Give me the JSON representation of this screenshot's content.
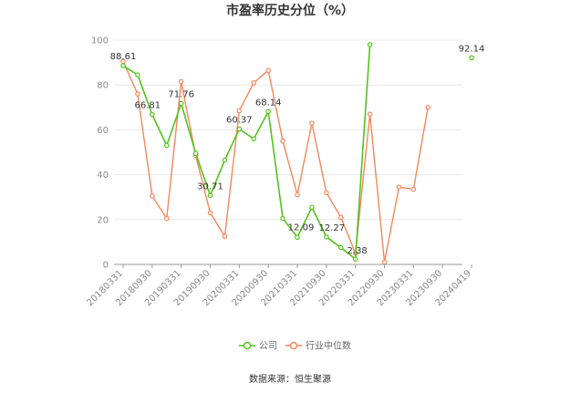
{
  "chart_data": {
    "type": "line",
    "title": "市盈率历史分位（%）",
    "xlabel": "",
    "ylabel": "",
    "ylim": [
      0,
      100
    ],
    "yticks": [
      0,
      20,
      40,
      60,
      80,
      100
    ],
    "x_tick_labels": [
      "20180331",
      "20180930",
      "20190331",
      "20190930",
      "20200331",
      "20200930",
      "20210331",
      "20210930",
      "20220331",
      "20220930",
      "20230331",
      "20230930",
      "20240419"
    ],
    "x_tick_positions": [
      0,
      2,
      4,
      6,
      8,
      10,
      12,
      14,
      16,
      18,
      20,
      22,
      24
    ],
    "grid": true,
    "legend_position": "bottom",
    "series": [
      {
        "name": "公司",
        "color": "#52c41a",
        "x": [
          0,
          1,
          2,
          3,
          4,
          5,
          6,
          7,
          8,
          9,
          10,
          11,
          12,
          13,
          14,
          15,
          16,
          17,
          24
        ],
        "values": [
          88.61,
          84.5,
          66.81,
          53.0,
          71.76,
          49.5,
          30.71,
          46.5,
          60.37,
          56.0,
          68.14,
          20.5,
          12.09,
          25.5,
          12.27,
          7.5,
          2.38,
          98.0,
          92.14
        ],
        "connected_until_index": 17
      },
      {
        "name": "行业中位数",
        "color": "#f4875a",
        "x": [
          0,
          1,
          2,
          3,
          4,
          5,
          6,
          7,
          8,
          9,
          10,
          11,
          12,
          13,
          14,
          15,
          16,
          17,
          18,
          19,
          20,
          21
        ],
        "values": [
          90.5,
          76.0,
          30.5,
          20.5,
          81.5,
          48.5,
          23.0,
          12.5,
          68.5,
          81.0,
          86.5,
          55.0,
          31.0,
          63.0,
          32.0,
          21.0,
          5.0,
          67.0,
          1.0,
          34.5,
          33.5,
          70.0
        ]
      }
    ],
    "data_labels": [
      {
        "series": 0,
        "index": 0,
        "text": "88.61"
      },
      {
        "series": 0,
        "index": 2,
        "text": "66.81"
      },
      {
        "series": 0,
        "index": 4,
        "text": "71.76"
      },
      {
        "series": 0,
        "index": 6,
        "text": "30.71"
      },
      {
        "series": 0,
        "index": 8,
        "text": "60.37"
      },
      {
        "series": 0,
        "index": 10,
        "text": "68.14"
      },
      {
        "series": 0,
        "index": 12,
        "text": "12.09"
      },
      {
        "series": 0,
        "index": 14,
        "text": "12.27"
      },
      {
        "series": 0,
        "index": 16,
        "text": "2.38"
      },
      {
        "series": 0,
        "index": 18,
        "text": "92.14"
      }
    ]
  },
  "footer": {
    "source": "数据来源：恒生聚源"
  }
}
